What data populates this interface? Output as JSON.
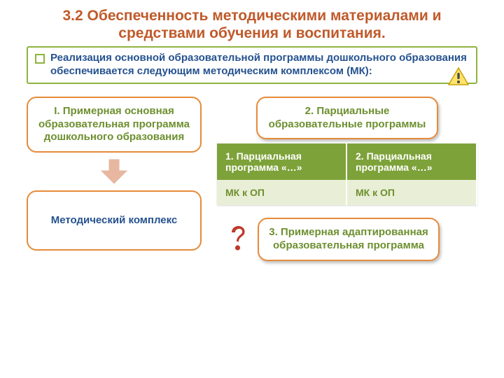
{
  "title": {
    "text": "3.2 Обеспеченность методическими материалами и средствами обучения и воспитания.",
    "color": "#c05a2a",
    "fontsize": 21
  },
  "intro": {
    "text": "Реализация основной образовательной программы дошкольного образования обеспечивается следующим методическим комплексом (МК):",
    "border_color": "#8fb440",
    "bullet_color": "#8fb440",
    "text_color": "#25528f",
    "fontsize": 15
  },
  "box1": {
    "text": "I. Примерная основная образовательная программа дошкольного образования",
    "border_color": "#e58b3a",
    "text_color": "#6d8f2f",
    "fontsize": 15
  },
  "arrow_color": "#e7b7a0",
  "box_method": {
    "text": "Методический комплекс",
    "border_color": "#e58b3a",
    "text_color": "#25528f",
    "fontsize": 15
  },
  "box2": {
    "text": "2. Парциальные образовательные программы",
    "border_color": "#e58b3a",
    "text_color": "#6d8f2f",
    "fontsize": 15
  },
  "table": {
    "header_bg": "#7ea23a",
    "header_color": "#ffffff",
    "row_bg": "#e9efd6",
    "row_color": "#6d8f2f",
    "fontsize": 14,
    "columns": [
      "1. Парциальная программа «…»",
      "2. Парциальная программа «…»"
    ],
    "rows": [
      [
        "МК к ОП",
        "МК к ОП"
      ]
    ]
  },
  "box3": {
    "text": "3. Примерная адаптированная образовательная программа",
    "border_color": "#e58b3a",
    "text_color": "#6d8f2f",
    "fontsize": 15
  },
  "question_color": "#c0392b"
}
